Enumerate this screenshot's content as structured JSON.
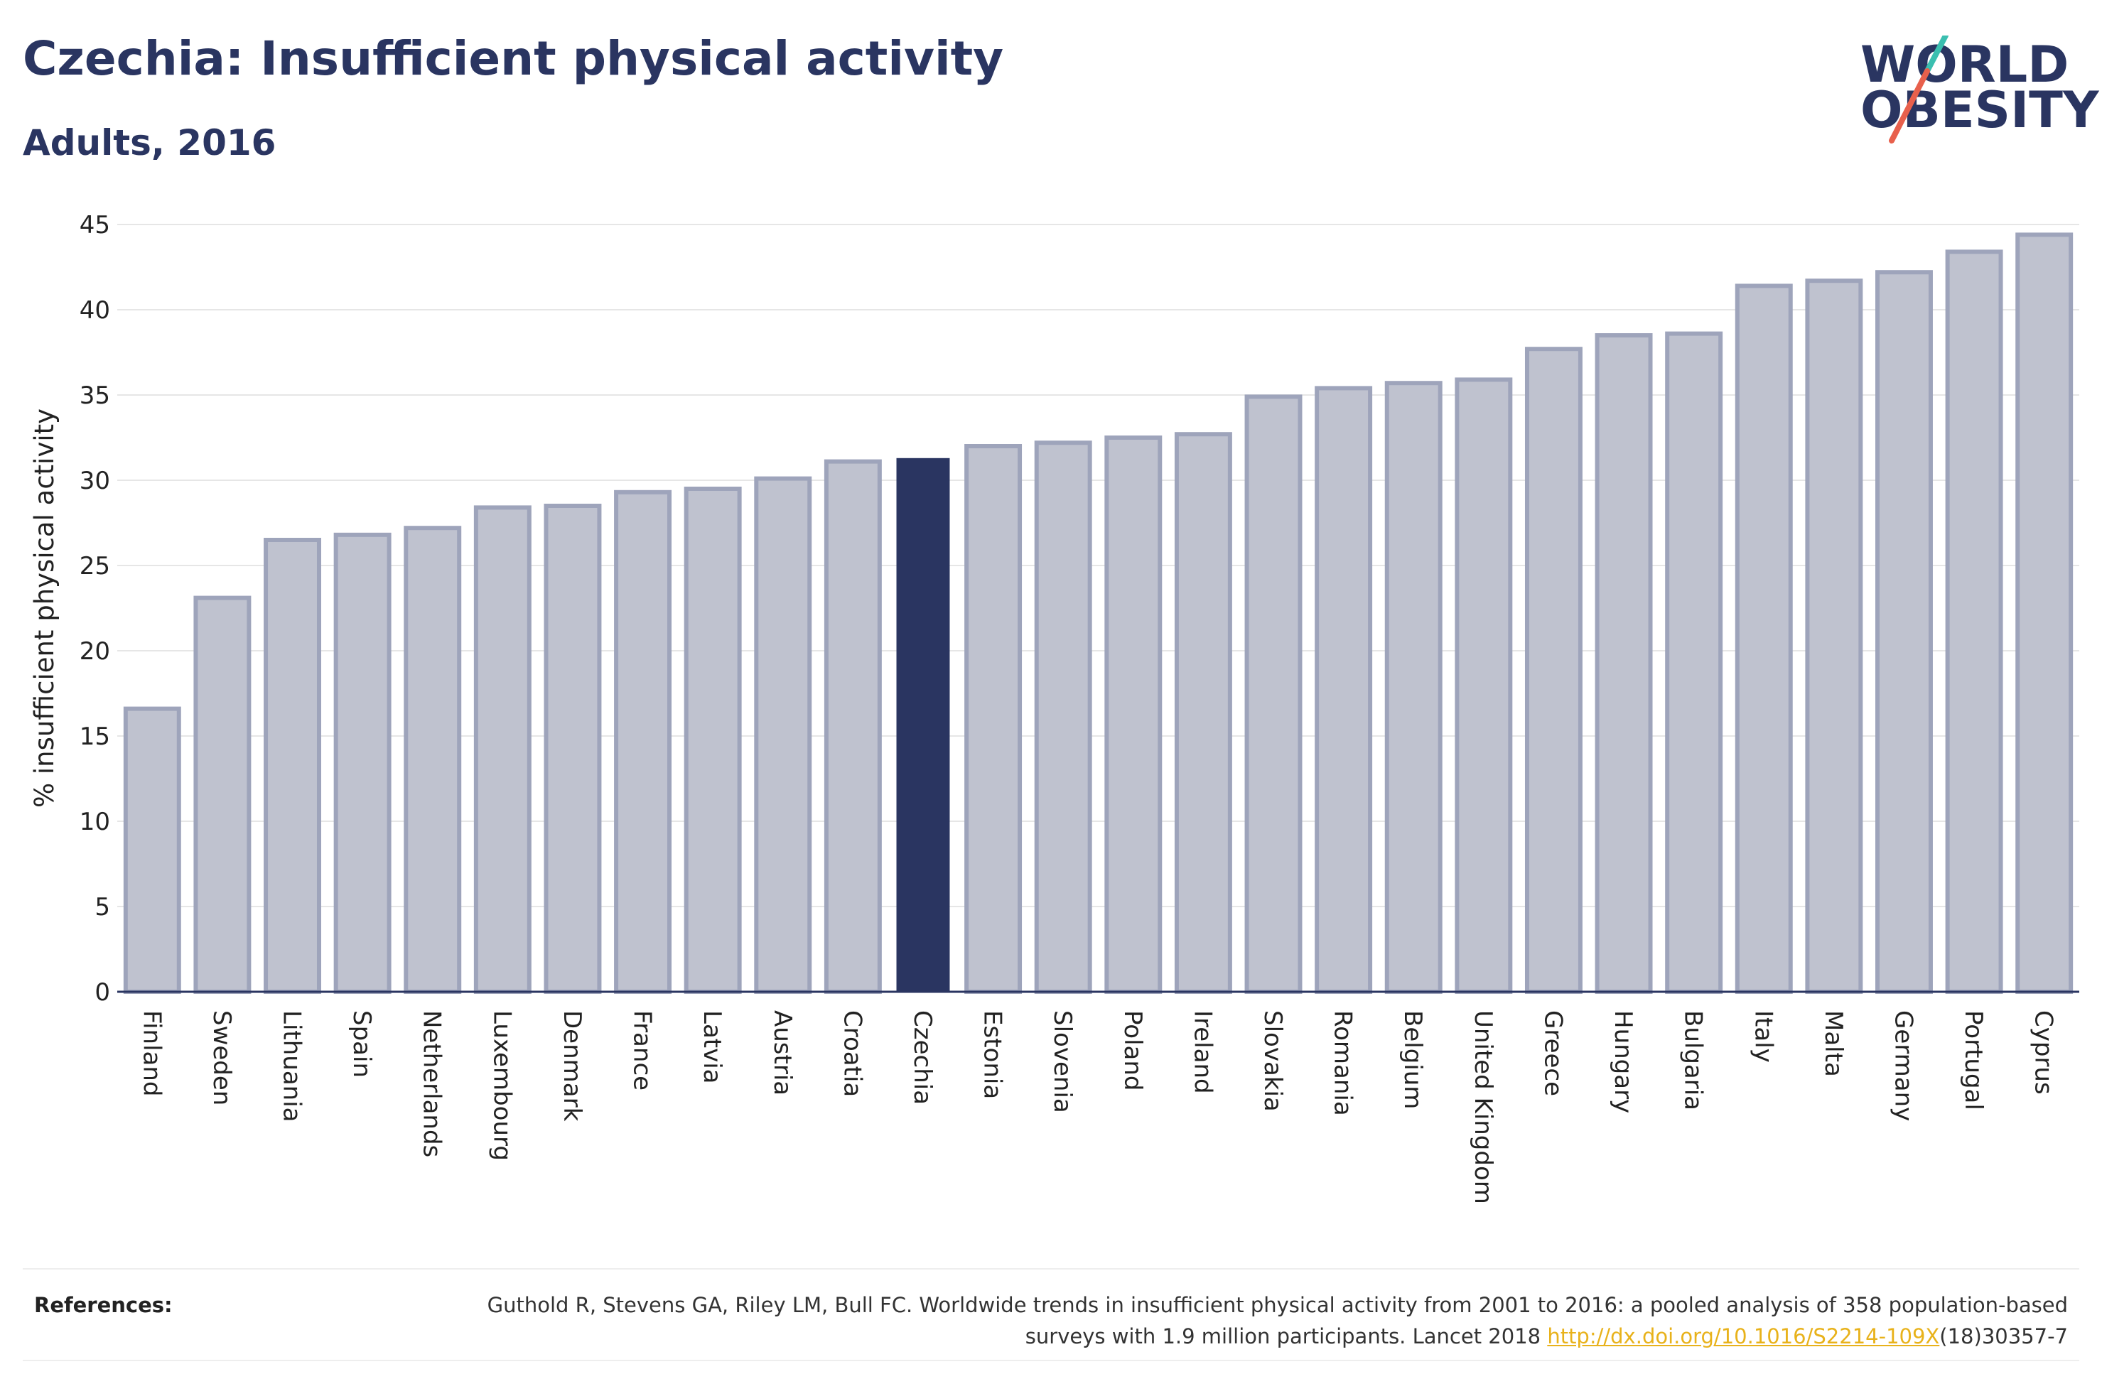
{
  "header": {
    "title": "Czechia: Insufficient physical activity",
    "subtitle": "Adults, 2016"
  },
  "logo": {
    "line1": "WORLD",
    "line2": "OBESITY",
    "accent_colors": [
      "#3bbfb0",
      "#e8604c"
    ]
  },
  "references": {
    "label": "References:",
    "text_part1": "Guthold R, Stevens GA, Riley LM, Bull FC. Worldwide trends in insufficient physical activity from 2001 to 2016: a pooled analysis of 358 population-based surveys with 1.9 million participants. Lancet 2018 ",
    "link": "http://dx.doi.org/10.1016/S2214-109X",
    "text_part2": "(18)30357-7"
  },
  "chart_data": {
    "type": "bar",
    "title": "Czechia: Insufficient physical activity",
    "subtitle": "Adults, 2016",
    "xlabel": "",
    "ylabel": "% insufficient physical activity",
    "ylim": [
      0,
      45
    ],
    "yticks": [
      0,
      5,
      10,
      15,
      20,
      25,
      30,
      35,
      40,
      45
    ],
    "grid": true,
    "highlight": "Czechia",
    "colors": {
      "bar": "#bfc2cf",
      "bar_edge": "#9ea4bb",
      "highlight": "#2a3561",
      "axis": "#2a3561",
      "grid": "#e6e6e6"
    },
    "categories": [
      "Finland",
      "Sweden",
      "Lithuania",
      "Spain",
      "Netherlands",
      "Luxembourg",
      "Denmark",
      "France",
      "Latvia",
      "Austria",
      "Croatia",
      "Czechia",
      "Estonia",
      "Slovenia",
      "Poland",
      "Ireland",
      "Slovakia",
      "Romania",
      "Belgium",
      "United Kingdom",
      "Greece",
      "Hungary",
      "Bulgaria",
      "Italy",
      "Malta",
      "Germany",
      "Portugal",
      "Cyprus"
    ],
    "values": [
      16.6,
      23.1,
      26.5,
      26.8,
      27.2,
      28.4,
      28.5,
      29.3,
      29.5,
      30.1,
      31.1,
      31.3,
      32.0,
      32.2,
      32.5,
      32.7,
      34.9,
      35.4,
      35.7,
      35.9,
      37.7,
      38.5,
      38.6,
      41.4,
      41.7,
      42.2,
      43.4,
      44.4
    ]
  }
}
